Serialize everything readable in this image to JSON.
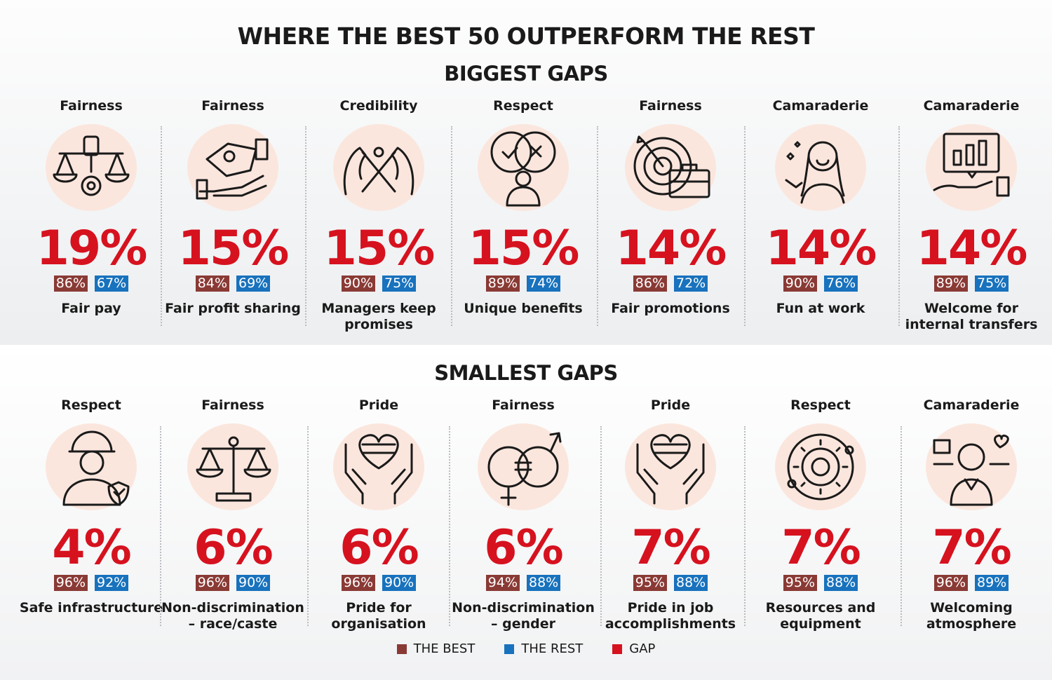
{
  "title": "WHERE THE BEST 50 OUTPERFORM THE REST",
  "colors": {
    "best": "#8a3a35",
    "rest": "#1872bd",
    "gap": "#d6121f",
    "icon_bg": "#fbe6dd"
  },
  "biggest": {
    "heading": "BIGGEST GAPS",
    "items": [
      {
        "category": "Fairness",
        "gap": "19%",
        "best": "86%",
        "rest": "67%",
        "label": "Fair pay",
        "icon": "scales-fist-gear-icon"
      },
      {
        "category": "Fairness",
        "gap": "15%",
        "best": "84%",
        "rest": "69%",
        "label": "Fair profit sharing",
        "icon": "hands-money-icon"
      },
      {
        "category": "Credibility",
        "gap": "15%",
        "best": "90%",
        "rest": "75%",
        "label": "Managers keep promises",
        "icon": "pinky-promise-icon"
      },
      {
        "category": "Respect",
        "gap": "15%",
        "best": "89%",
        "rest": "74%",
        "label": "Unique benefits",
        "icon": "person-choices-icon"
      },
      {
        "category": "Fairness",
        "gap": "14%",
        "best": "86%",
        "rest": "72%",
        "label": "Fair promotions",
        "icon": "target-briefcase-icon"
      },
      {
        "category": "Camaraderie",
        "gap": "14%",
        "best": "90%",
        "rest": "76%",
        "label": "Fun at work",
        "icon": "happy-woman-icon"
      },
      {
        "category": "Camaraderie",
        "gap": "14%",
        "best": "89%",
        "rest": "75%",
        "label": "Welcome for internal transfers",
        "icon": "hand-chart-icon"
      }
    ]
  },
  "smallest": {
    "heading": "SMALLEST GAPS",
    "items": [
      {
        "category": "Respect",
        "gap": "4%",
        "best": "96%",
        "rest": "92%",
        "label": "Safe infrastructure",
        "icon": "worker-shield-icon"
      },
      {
        "category": "Fairness",
        "gap": "6%",
        "best": "96%",
        "rest": "90%",
        "label": "Non-discrimination – race/caste",
        "icon": "balance-scale-icon"
      },
      {
        "category": "Pride",
        "gap": "6%",
        "best": "96%",
        "rest": "90%",
        "label": "Pride for organisation",
        "icon": "hands-heart-icon"
      },
      {
        "category": "Fairness",
        "gap": "6%",
        "best": "94%",
        "rest": "88%",
        "label": "Non-discrimination – gender",
        "icon": "gender-equality-icon"
      },
      {
        "category": "Pride",
        "gap": "7%",
        "best": "95%",
        "rest": "88%",
        "label": "Pride in job accomplishments",
        "icon": "hands-heart-icon"
      },
      {
        "category": "Respect",
        "gap": "7%",
        "best": "95%",
        "rest": "88%",
        "label": "Resources and equipment",
        "icon": "gear-cycle-icon"
      },
      {
        "category": "Camaraderie",
        "gap": "7%",
        "best": "96%",
        "rest": "89%",
        "label": "Welcoming atmosphere",
        "icon": "person-welcome-icon"
      }
    ]
  },
  "legend": [
    {
      "label": "THE BEST",
      "color": "#8a3a35"
    },
    {
      "label": "THE REST",
      "color": "#1872bd"
    },
    {
      "label": "GAP",
      "color": "#d6121f"
    }
  ]
}
